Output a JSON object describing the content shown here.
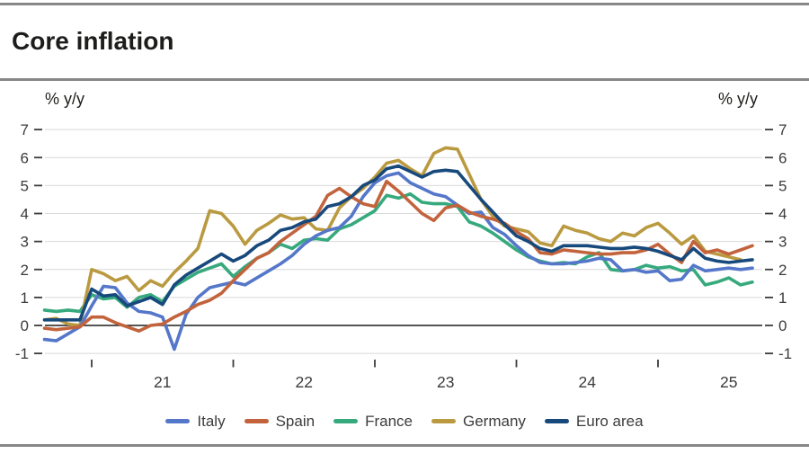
{
  "header": {
    "title": "Core inflation"
  },
  "style": {
    "rule_color": "#878787",
    "title_color": "#1d1d1b",
    "grid_color": "#d9d9d9",
    "zero_line_color": "#1d1d1b",
    "tick_color": "#3c3c3b",
    "label_color": "#3c3c3b"
  },
  "chart_data": {
    "type": "line",
    "title": "Core inflation",
    "ylabel_left": "% y/y",
    "ylabel_right": "% y/y",
    "ylim": [
      -1,
      7
    ],
    "yticks": [
      7,
      6,
      5,
      4,
      3,
      2,
      1,
      0,
      -1
    ],
    "grid": true,
    "legend_position": "bottom",
    "x_start_month": "2020-09",
    "x_months": 61,
    "x_year_ticks": [
      {
        "label": "21",
        "month_index": 4
      },
      {
        "label": "22",
        "month_index": 16
      },
      {
        "label": "23",
        "month_index": 28
      },
      {
        "label": "24",
        "month_index": 40
      },
      {
        "label": "25",
        "month_index": 52
      }
    ],
    "render_order": [
      "France",
      "Germany",
      "Italy",
      "Spain",
      "Euro area"
    ],
    "series": [
      {
        "name": "Italy",
        "color": "#5577c9",
        "values": [
          -0.5,
          -0.55,
          -0.3,
          -0.05,
          0.7,
          1.4,
          1.35,
          0.8,
          0.5,
          0.45,
          0.3,
          -0.85,
          0.4,
          1.0,
          1.35,
          1.45,
          1.55,
          1.45,
          1.7,
          1.95,
          2.2,
          2.5,
          2.9,
          3.2,
          3.4,
          3.5,
          3.9,
          4.6,
          5.1,
          5.35,
          5.45,
          5.1,
          4.9,
          4.7,
          4.6,
          4.3,
          4.0,
          4.05,
          3.5,
          3.25,
          2.85,
          2.5,
          2.25,
          2.2,
          2.2,
          2.25,
          2.3,
          2.4,
          2.35,
          1.95,
          2.0,
          1.9,
          1.95,
          1.6,
          1.65,
          2.15,
          1.95,
          2.0,
          2.05,
          2.0,
          2.05
        ]
      },
      {
        "name": "Spain",
        "color": "#c2633c",
        "values": [
          -0.1,
          -0.15,
          -0.1,
          -0.05,
          0.3,
          0.3,
          0.1,
          -0.05,
          -0.2,
          0.0,
          0.05,
          0.3,
          0.5,
          0.75,
          0.9,
          1.15,
          1.6,
          2.0,
          2.4,
          2.6,
          3.0,
          3.3,
          3.6,
          3.9,
          4.65,
          4.9,
          4.6,
          4.35,
          4.25,
          5.15,
          4.8,
          4.4,
          4.0,
          3.75,
          4.2,
          4.3,
          4.05,
          3.9,
          3.8,
          3.65,
          3.35,
          3.1,
          2.6,
          2.55,
          2.7,
          2.65,
          2.6,
          2.55,
          2.55,
          2.6,
          2.6,
          2.7,
          2.9,
          2.55,
          2.25,
          3.0,
          2.6,
          2.7,
          2.55,
          2.7,
          2.85
        ]
      },
      {
        "name": "France",
        "color": "#36a97d",
        "values": [
          0.55,
          0.5,
          0.55,
          0.5,
          1.1,
          0.95,
          1.0,
          0.65,
          1.0,
          1.1,
          0.85,
          1.4,
          1.65,
          1.9,
          2.05,
          2.2,
          1.75,
          2.1,
          2.4,
          2.6,
          2.9,
          2.75,
          3.05,
          3.1,
          3.05,
          3.45,
          3.6,
          3.85,
          4.1,
          4.65,
          4.55,
          4.7,
          4.4,
          4.35,
          4.35,
          4.25,
          3.7,
          3.55,
          3.3,
          3.0,
          2.7,
          2.45,
          2.3,
          2.2,
          2.25,
          2.2,
          2.45,
          2.6,
          2.0,
          1.95,
          2.0,
          2.15,
          2.05,
          2.1,
          1.95,
          2.0,
          1.45,
          1.55,
          1.7,
          1.45,
          1.55
        ]
      },
      {
        "name": "Germany",
        "color": "#ba9a40",
        "values": [
          0.2,
          0.25,
          0.05,
          0.0,
          2.0,
          1.85,
          1.6,
          1.75,
          1.25,
          1.6,
          1.4,
          1.9,
          2.3,
          2.75,
          4.1,
          4.0,
          3.55,
          2.9,
          3.4,
          3.65,
          3.95,
          3.8,
          3.85,
          3.45,
          3.4,
          4.2,
          4.6,
          4.9,
          5.3,
          5.8,
          5.9,
          5.6,
          5.35,
          6.15,
          6.35,
          6.3,
          5.4,
          4.5,
          3.9,
          3.55,
          3.45,
          3.35,
          2.95,
          2.85,
          3.55,
          3.4,
          3.3,
          3.1,
          3.0,
          3.3,
          3.2,
          3.5,
          3.65,
          3.3,
          2.9,
          3.2,
          2.65,
          2.55,
          2.45,
          2.35,
          null
        ]
      },
      {
        "name": "Euro area",
        "color": "#17497c",
        "values": [
          0.2,
          0.2,
          0.2,
          0.2,
          1.3,
          1.05,
          1.1,
          0.7,
          0.85,
          1.0,
          0.75,
          1.45,
          1.8,
          2.05,
          2.3,
          2.55,
          2.3,
          2.5,
          2.85,
          3.05,
          3.4,
          3.5,
          3.7,
          3.8,
          4.25,
          4.35,
          4.6,
          5.0,
          5.2,
          5.6,
          5.7,
          5.5,
          5.3,
          5.5,
          5.55,
          5.5,
          5.0,
          4.5,
          4.05,
          3.6,
          3.2,
          3.0,
          2.75,
          2.65,
          2.85,
          2.85,
          2.85,
          2.8,
          2.75,
          2.75,
          2.8,
          2.75,
          2.65,
          2.5,
          2.35,
          2.75,
          2.4,
          2.3,
          2.25,
          2.3,
          2.35
        ]
      }
    ]
  }
}
